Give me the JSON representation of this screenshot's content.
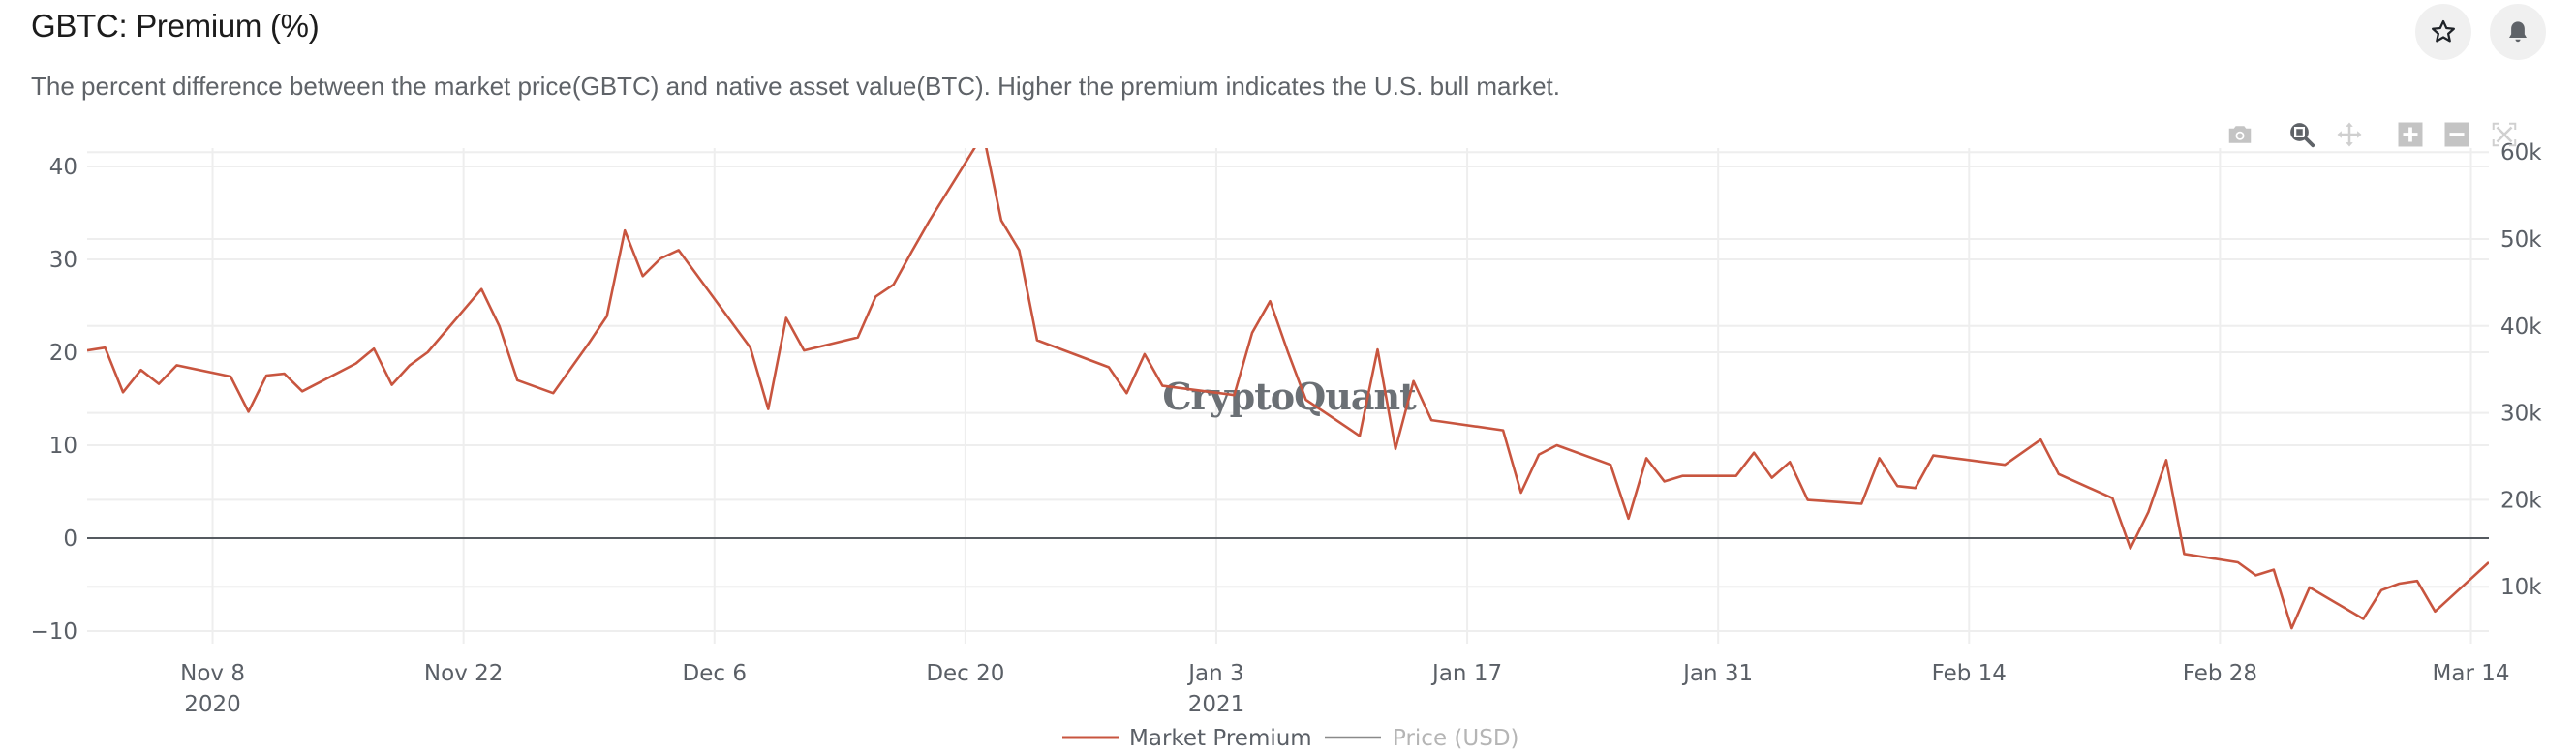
{
  "header": {
    "title": "GBTC: Premium (%)",
    "description": "The percent difference between the market price(GBTC) and native asset value(BTC). Higher the premium indicates the U.S. bull market.",
    "buttons": [
      {
        "name": "favorite-button",
        "icon": "star-icon"
      },
      {
        "name": "alert-button",
        "icon": "bell-icon"
      }
    ]
  },
  "modebar": [
    {
      "name": "download-plot-button",
      "icon": "camera-icon",
      "active": false
    },
    {
      "name": "zoom-button",
      "icon": "zoom-icon",
      "active": true
    },
    {
      "name": "pan-button",
      "icon": "pan-icon",
      "active": false
    },
    {
      "name": "zoom-in-button",
      "icon": "plus-box-icon",
      "active": false
    },
    {
      "name": "zoom-out-button",
      "icon": "minus-box-icon",
      "active": false
    },
    {
      "name": "autoscale-button",
      "icon": "autoscale-icon",
      "active": false
    }
  ],
  "colors": {
    "premium_line": "#c8553f",
    "price_line": "#8a8a8a",
    "zero_line": "#555a60",
    "grid": "#eeeeee",
    "tick_text": "#5a5f66"
  },
  "chart_data": {
    "type": "line",
    "title": "GBTC: Premium (%)",
    "xlabel": "",
    "ylabel": "",
    "watermark": "CryptoQuant",
    "x_range": [
      "2020-11-01",
      "2021-03-15"
    ],
    "x_ticks": [
      {
        "date": "2020-11-08",
        "label": "Nov 8",
        "sublabel": "2020"
      },
      {
        "date": "2020-11-22",
        "label": "Nov 22",
        "sublabel": ""
      },
      {
        "date": "2020-12-06",
        "label": "Dec 6",
        "sublabel": ""
      },
      {
        "date": "2020-12-20",
        "label": "Dec 20",
        "sublabel": ""
      },
      {
        "date": "2021-01-03",
        "label": "Jan 3",
        "sublabel": "2021"
      },
      {
        "date": "2021-01-17",
        "label": "Jan 17",
        "sublabel": ""
      },
      {
        "date": "2021-01-31",
        "label": "Jan 31",
        "sublabel": ""
      },
      {
        "date": "2021-02-14",
        "label": "Feb 14",
        "sublabel": ""
      },
      {
        "date": "2021-02-28",
        "label": "Feb 28",
        "sublabel": ""
      },
      {
        "date": "2021-03-14",
        "label": "Mar 14",
        "sublabel": ""
      }
    ],
    "y_left": {
      "range": [
        -12,
        42
      ],
      "ticks": [
        -10,
        0,
        10,
        20,
        30,
        40
      ],
      "tick_labels": [
        "−10",
        "0",
        "10",
        "20",
        "30",
        "40"
      ]
    },
    "y_right": {
      "range": [
        0,
        60000
      ],
      "ticks": [
        10000,
        20000,
        30000,
        40000,
        50000,
        60000
      ],
      "tick_labels": [
        "10k",
        "20k",
        "30k",
        "40k",
        "50k",
        "60k"
      ]
    },
    "grid": true,
    "legend": {
      "placement": "bottom-center",
      "entries": [
        {
          "label": "Market Premium",
          "visible": true
        },
        {
          "label": "Price (USD)",
          "visible": false
        }
      ]
    },
    "series": [
      {
        "name": "Market Premium",
        "axis": "left",
        "points": [
          [
            "2020-11-01",
            20.2
          ],
          [
            "2020-11-02",
            20.5
          ],
          [
            "2020-11-03",
            15.7
          ],
          [
            "2020-11-04",
            18.1
          ],
          [
            "2020-11-05",
            16.6
          ],
          [
            "2020-11-06",
            18.6
          ],
          [
            "2020-11-09",
            17.4
          ],
          [
            "2020-11-10",
            13.6
          ],
          [
            "2020-11-11",
            17.5
          ],
          [
            "2020-11-12",
            17.7
          ],
          [
            "2020-11-13",
            15.8
          ],
          [
            "2020-11-16",
            18.8
          ],
          [
            "2020-11-17",
            20.4
          ],
          [
            "2020-11-18",
            16.5
          ],
          [
            "2020-11-19",
            18.6
          ],
          [
            "2020-11-20",
            20.0
          ],
          [
            "2020-11-23",
            26.8
          ],
          [
            "2020-11-24",
            22.8
          ],
          [
            "2020-11-25",
            17.0
          ],
          [
            "2020-11-27",
            15.6
          ],
          [
            "2020-11-28",
            18.3
          ],
          [
            "2020-11-29",
            21.0
          ],
          [
            "2020-11-30",
            23.9
          ],
          [
            "2020-12-01",
            33.1
          ],
          [
            "2020-12-02",
            28.2
          ],
          [
            "2020-12-03",
            30.1
          ],
          [
            "2020-12-04",
            31.0
          ],
          [
            "2020-12-08",
            20.5
          ],
          [
            "2020-12-09",
            13.9
          ],
          [
            "2020-12-10",
            23.7
          ],
          [
            "2020-12-11",
            20.2
          ],
          [
            "2020-12-14",
            21.6
          ],
          [
            "2020-12-15",
            26.0
          ],
          [
            "2020-12-16",
            27.3
          ],
          [
            "2020-12-17",
            30.8
          ],
          [
            "2020-12-18",
            34.2
          ],
          [
            "2020-12-21",
            43.5
          ],
          [
            "2020-12-22",
            34.2
          ],
          [
            "2020-12-23",
            31.0
          ],
          [
            "2020-12-24",
            21.3
          ],
          [
            "2020-12-28",
            18.4
          ],
          [
            "2020-12-29",
            15.6
          ],
          [
            "2020-12-30",
            19.8
          ],
          [
            "2020-12-31",
            16.4
          ],
          [
            "2021-01-04",
            15.4
          ],
          [
            "2021-01-05",
            22.1
          ],
          [
            "2021-01-06",
            25.5
          ],
          [
            "2021-01-07",
            20.0
          ],
          [
            "2021-01-08",
            14.9
          ],
          [
            "2021-01-11",
            11.0
          ],
          [
            "2021-01-12",
            20.3
          ],
          [
            "2021-01-13",
            9.6
          ],
          [
            "2021-01-14",
            16.9
          ],
          [
            "2021-01-15",
            12.7
          ],
          [
            "2021-01-19",
            11.6
          ],
          [
            "2021-01-20",
            4.9
          ],
          [
            "2021-01-21",
            9.0
          ],
          [
            "2021-01-22",
            10.0
          ],
          [
            "2021-01-25",
            7.9
          ],
          [
            "2021-01-26",
            2.1
          ],
          [
            "2021-01-27",
            8.6
          ],
          [
            "2021-01-28",
            6.1
          ],
          [
            "2021-01-29",
            6.7
          ],
          [
            "2021-02-01",
            6.7
          ],
          [
            "2021-02-02",
            9.2
          ],
          [
            "2021-02-03",
            6.5
          ],
          [
            "2021-02-04",
            8.2
          ],
          [
            "2021-02-05",
            4.1
          ],
          [
            "2021-02-08",
            3.7
          ],
          [
            "2021-02-09",
            8.6
          ],
          [
            "2021-02-10",
            5.6
          ],
          [
            "2021-02-11",
            5.4
          ],
          [
            "2021-02-12",
            8.9
          ],
          [
            "2021-02-16",
            7.9
          ],
          [
            "2021-02-18",
            10.6
          ],
          [
            "2021-02-19",
            6.9
          ],
          [
            "2021-02-22",
            4.3
          ],
          [
            "2021-02-23",
            -1.1
          ],
          [
            "2021-02-24",
            2.8
          ],
          [
            "2021-02-25",
            8.4
          ],
          [
            "2021-02-26",
            -1.7
          ],
          [
            "2021-03-01",
            -2.6
          ],
          [
            "2021-03-02",
            -4.0
          ],
          [
            "2021-03-03",
            -3.4
          ],
          [
            "2021-03-04",
            -9.7
          ],
          [
            "2021-03-05",
            -5.3
          ],
          [
            "2021-03-08",
            -8.7
          ],
          [
            "2021-03-09",
            -5.6
          ],
          [
            "2021-03-10",
            -4.9
          ],
          [
            "2021-03-11",
            -4.6
          ],
          [
            "2021-03-12",
            -7.9
          ],
          [
            "2021-03-15",
            -2.6
          ]
        ]
      },
      {
        "name": "Price (USD)",
        "axis": "right",
        "hidden": true,
        "points": []
      }
    ]
  }
}
